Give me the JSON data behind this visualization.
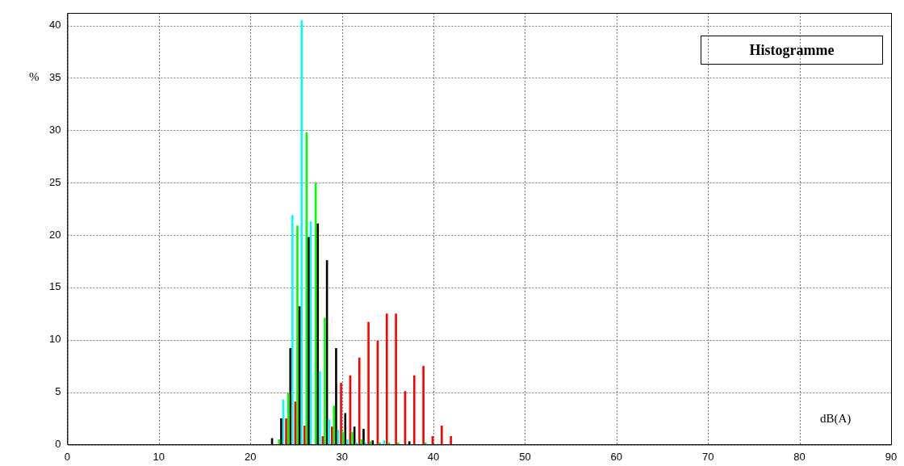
{
  "chart_data": {
    "type": "histogram",
    "title": "Histogramme",
    "xlabel": "dB(A)",
    "ylabel": "%",
    "bins": [
      21.75,
      22.75,
      23.75,
      24.75,
      25.75,
      26.75,
      27.75,
      28.75,
      29.75,
      30.75,
      31.75,
      32.75,
      33.75,
      34.75,
      35.75,
      36.75,
      37.75,
      38.75,
      39.75,
      40.75,
      41.75,
      42.75
    ],
    "series": [
      {
        "color": "#ff0000",
        "values": [
          0,
          0,
          2.5,
          4.1,
          1.8,
          0,
          0.8,
          1.7,
          5.9,
          6.6,
          8.3,
          11.7,
          9.9,
          12.5,
          12.5,
          5.1,
          6.6,
          7.5,
          0.8,
          1.8,
          0.8
        ]
      },
      {
        "color": "#00ff00",
        "values": [
          0,
          0.5,
          4.9,
          20.9,
          29.8,
          25.0,
          12.1,
          3.7,
          1.2,
          1.2,
          0.5,
          0.3,
          0.2,
          0.2,
          0.2,
          0,
          0,
          0.2,
          0,
          0,
          0
        ]
      },
      {
        "color": "#000000",
        "values": [
          0.6,
          2.5,
          9.2,
          13.2,
          19.8,
          21.1,
          17.6,
          9.2,
          3.0,
          1.7,
          1.5,
          0.4,
          0,
          0,
          0,
          0.3,
          null,
          0,
          0,
          null,
          null
        ]
      },
      {
        "color": "#00ffff",
        "values": [
          0,
          4.3,
          21.9,
          40.5,
          21.3,
          7.0,
          2.4,
          1.4,
          0.5,
          0.2,
          0.2,
          0,
          0.4,
          0,
          0,
          0,
          0,
          0,
          0,
          0,
          0
        ]
      }
    ],
    "xlim": [
      0,
      90
    ],
    "xticks": [
      0,
      10,
      20,
      30,
      40,
      50,
      60,
      70,
      80,
      90
    ],
    "ylim": [
      0,
      41.2
    ],
    "yticks": [
      0,
      5,
      10,
      15,
      20,
      25,
      30,
      35,
      40
    ],
    "grid": true,
    "legend": false
  }
}
